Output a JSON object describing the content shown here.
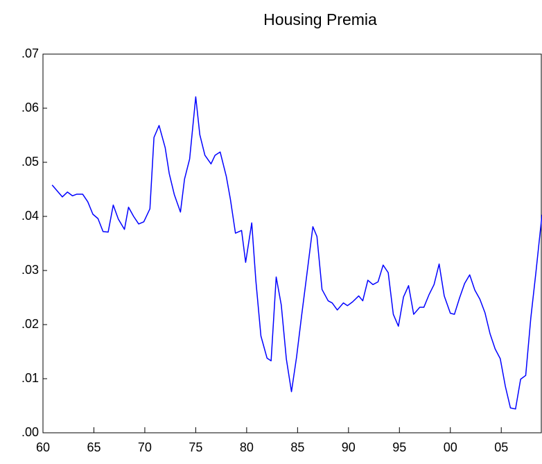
{
  "chart_data": {
    "type": "line",
    "title": "Housing Premia",
    "x": [
      1960.9,
      1961.9,
      1962.4,
      1962.9,
      1963.3,
      1963.9,
      1964.4,
      1964.9,
      1965.4,
      1965.9,
      1966.4,
      1966.9,
      1967.4,
      1968.0,
      1968.4,
      1968.9,
      1969.4,
      1969.9,
      1970.5,
      1970.9,
      1971.4,
      1972.0,
      1972.4,
      1972.9,
      1973.5,
      1973.9,
      1974.4,
      1975.0,
      1975.4,
      1975.9,
      1976.5,
      1976.9,
      1977.4,
      1978.0,
      1978.4,
      1978.9,
      1979.5,
      1979.9,
      1980.5,
      1980.9,
      1981.4,
      1982.0,
      1982.4,
      1982.9,
      1983.4,
      1983.9,
      1984.4,
      1984.9,
      1985.4,
      1985.9,
      1986.5,
      1986.9,
      1987.4,
      1988.0,
      1988.4,
      1988.9,
      1989.5,
      1989.9,
      1990.4,
      1991.0,
      1991.4,
      1991.9,
      1992.4,
      1992.9,
      1993.4,
      1993.9,
      1994.4,
      1994.9,
      1995.4,
      1995.9,
      1996.4,
      1997.0,
      1997.4,
      1997.9,
      1998.4,
      1998.9,
      1999.4,
      2000.0,
      2000.4,
      2000.9,
      2001.4,
      2001.9,
      2002.4,
      2002.9,
      2003.4,
      2003.9,
      2004.4,
      2004.9,
      2005.4,
      2005.9,
      2006.4,
      2006.9,
      2007.4,
      2007.9,
      2008.4,
      2009.0
    ],
    "series": [
      {
        "color": "#0000ff",
        "values": [
          0.0458,
          0.0436,
          0.0445,
          0.0438,
          0.0441,
          0.0441,
          0.0427,
          0.0404,
          0.0396,
          0.0372,
          0.0371,
          0.0421,
          0.0395,
          0.0376,
          0.0417,
          0.04,
          0.0386,
          0.039,
          0.0414,
          0.0546,
          0.0568,
          0.0527,
          0.0479,
          0.044,
          0.0408,
          0.0469,
          0.0506,
          0.0621,
          0.0551,
          0.0513,
          0.0497,
          0.0513,
          0.0519,
          0.0474,
          0.0432,
          0.0369,
          0.0374,
          0.0315,
          0.0388,
          0.0282,
          0.0179,
          0.0138,
          0.0133,
          0.0288,
          0.0236,
          0.0136,
          0.0076,
          0.014,
          0.0217,
          0.0291,
          0.0381,
          0.0363,
          0.0265,
          0.0244,
          0.024,
          0.0227,
          0.024,
          0.0235,
          0.0242,
          0.0253,
          0.0244,
          0.0282,
          0.0274,
          0.0279,
          0.031,
          0.0296,
          0.0219,
          0.0197,
          0.0251,
          0.0272,
          0.0219,
          0.0232,
          0.0232,
          0.0255,
          0.0274,
          0.0312,
          0.0253,
          0.0221,
          0.0219,
          0.0249,
          0.0276,
          0.0292,
          0.0264,
          0.0247,
          0.0222,
          0.0183,
          0.0155,
          0.0137,
          0.0086,
          0.0046,
          0.0044,
          0.0099,
          0.0106,
          0.0212,
          0.0296,
          0.0403
        ]
      }
    ],
    "xlim": [
      1960,
      2009
    ],
    "xticks": [
      {
        "value": 1960,
        "label": "60"
      },
      {
        "value": 1965,
        "label": "65"
      },
      {
        "value": 1970,
        "label": "70"
      },
      {
        "value": 1975,
        "label": "75"
      },
      {
        "value": 1980,
        "label": "80"
      },
      {
        "value": 1985,
        "label": "85"
      },
      {
        "value": 1990,
        "label": "90"
      },
      {
        "value": 1995,
        "label": "95"
      },
      {
        "value": 2000,
        "label": "00"
      },
      {
        "value": 2005,
        "label": "05"
      }
    ],
    "ylim": [
      0,
      0.07
    ],
    "yticks": [
      {
        "value": 0,
        "label": ".00"
      },
      {
        "value": 0.01,
        "label": ".01"
      },
      {
        "value": 0.02,
        "label": ".02"
      },
      {
        "value": 0.03,
        "label": ".03"
      },
      {
        "value": 0.04,
        "label": ".04"
      },
      {
        "value": 0.05,
        "label": ".05"
      },
      {
        "value": 0.06,
        "label": ".06"
      },
      {
        "value": 0.07,
        "label": ".07"
      }
    ]
  }
}
